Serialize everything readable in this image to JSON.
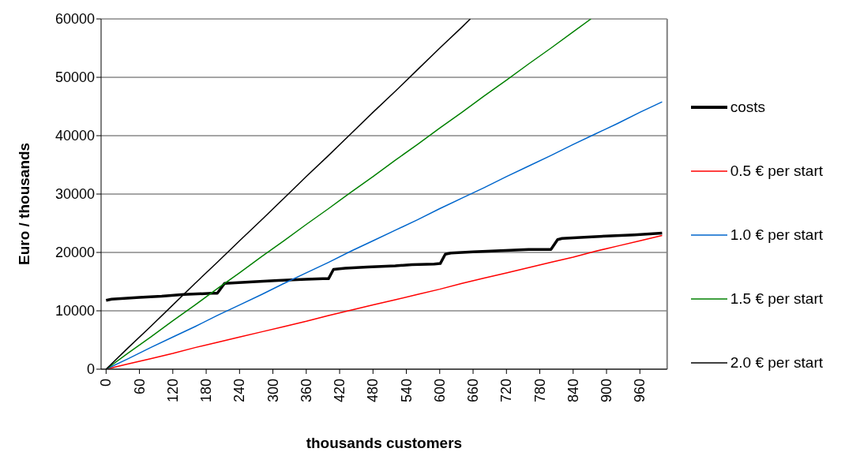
{
  "chart_data": {
    "type": "line",
    "xlabel": "thousands customers",
    "ylabel": "Euro / thousands",
    "xlim": [
      -9,
      1009
    ],
    "xticks": [
      0,
      60,
      120,
      180,
      240,
      300,
      360,
      420,
      480,
      540,
      600,
      660,
      720,
      780,
      840,
      900,
      960
    ],
    "ylim": [
      0,
      60000
    ],
    "yticks": [
      0,
      10000,
      20000,
      30000,
      40000,
      50000,
      60000
    ],
    "grid": "y",
    "legend": "right",
    "marker": "none",
    "line_style": "solid",
    "series": [
      {
        "name": "costs",
        "color": "#000000",
        "x": [
          0,
          10,
          60,
          100,
          140,
          190,
          200,
          213,
          270,
          310,
          360,
          390,
          400,
          409,
          430,
          470,
          520,
          550,
          590,
          601,
          610,
          620,
          660,
          710,
          760,
          790,
          800,
          812,
          820,
          860,
          900,
          950,
          1000
        ],
        "values": [
          11800,
          12000,
          12300,
          12500,
          12800,
          13000,
          13000,
          14700,
          15000,
          15200,
          15400,
          15500,
          15500,
          17100,
          17300,
          17500,
          17700,
          17900,
          18000,
          18100,
          19700,
          19900,
          20100,
          20300,
          20500,
          20500,
          20500,
          22200,
          22400,
          22600,
          22800,
          23000,
          23300
        ]
      },
      {
        "name": "0.5 € per start",
        "color": "#ff0000",
        "x": [
          0,
          40,
          80,
          120,
          160,
          200,
          240,
          280,
          320,
          360,
          400,
          440,
          480,
          520,
          560,
          600,
          640,
          680,
          720,
          760,
          800,
          840,
          880,
          920,
          960,
          1000
        ],
        "values": [
          0,
          900,
          1800,
          2700,
          3700,
          4600,
          5500,
          6400,
          7300,
          8200,
          9200,
          10100,
          11000,
          11900,
          12800,
          13700,
          14700,
          15600,
          16500,
          17400,
          18300,
          19200,
          20200,
          21100,
          22000,
          22900
        ]
      },
      {
        "name": "1.0 € per start",
        "color": "#0066cc",
        "x": [
          0,
          40,
          80,
          120,
          160,
          200,
          240,
          280,
          320,
          360,
          400,
          440,
          480,
          520,
          560,
          600,
          640,
          680,
          720,
          760,
          800,
          840,
          880,
          920,
          960,
          1000
        ],
        "values": [
          0,
          1800,
          3700,
          5500,
          7300,
          9200,
          11000,
          12800,
          14700,
          16500,
          18300,
          20200,
          22000,
          23800,
          25600,
          27500,
          29300,
          31100,
          33000,
          34800,
          36600,
          38500,
          40300,
          42100,
          44000,
          45800
        ]
      },
      {
        "name": "1.5 € per start",
        "color": "#008000",
        "x": [
          0,
          40,
          80,
          120,
          160,
          200,
          240,
          280,
          320,
          360,
          400,
          440,
          480,
          520,
          560,
          600,
          640,
          680,
          720,
          760,
          800,
          840,
          872
        ],
        "values": [
          0,
          2800,
          5500,
          8300,
          11000,
          13800,
          16500,
          19300,
          22000,
          24800,
          27500,
          30300,
          33000,
          35800,
          38500,
          41300,
          44000,
          46800,
          49500,
          52300,
          55000,
          57800,
          60000
        ]
      },
      {
        "name": "2.0 € per start",
        "color": "#000000",
        "x": [
          0,
          40,
          80,
          120,
          160,
          200,
          240,
          280,
          320,
          360,
          400,
          440,
          480,
          520,
          560,
          600,
          640,
          655
        ],
        "values": [
          0,
          3700,
          7300,
          11000,
          14700,
          18300,
          22000,
          25600,
          29300,
          33000,
          36600,
          40300,
          44000,
          47600,
          51300,
          55000,
          58600,
          60000
        ]
      }
    ]
  }
}
